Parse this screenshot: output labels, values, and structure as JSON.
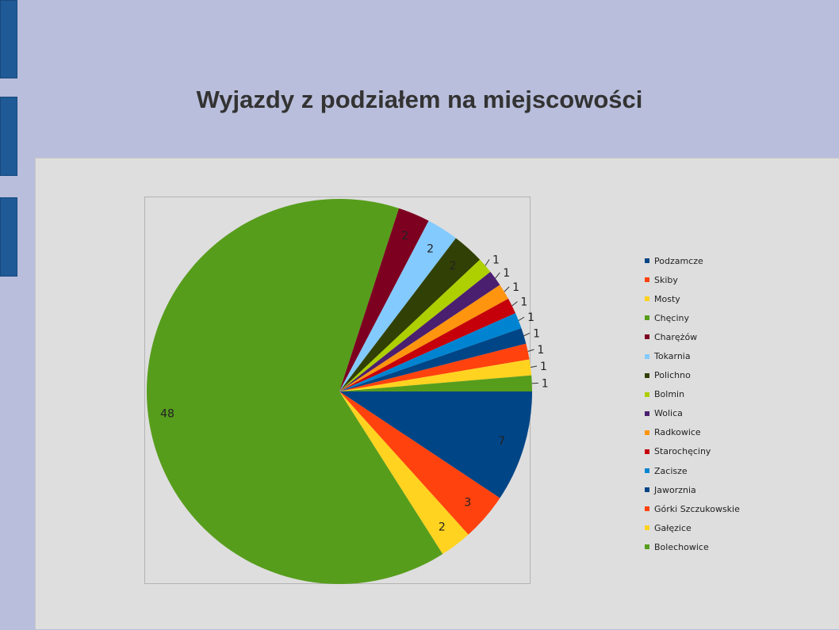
{
  "title": "Wyjazdy z podziałem na miejscowości",
  "chart_data": {
    "type": "pie",
    "categories": [
      "Podzamcze",
      "Skiby",
      "Mosty",
      "Chęciny",
      "Charężów",
      "Tokarnia",
      "Polichno",
      "Bolmin",
      "Wolica",
      "Radkowice",
      "Starochęciny",
      "Zacisze",
      "Jaworznia",
      "Górki Szczukowskie",
      "Gałęzice",
      "Bolechowice"
    ],
    "values": [
      7,
      3,
      2,
      48,
      2,
      2,
      2,
      1,
      1,
      1,
      1,
      1,
      1,
      1,
      1,
      1
    ],
    "colors": [
      "#004586",
      "#ff420e",
      "#ffd320",
      "#579d1c",
      "#7e0021",
      "#83caff",
      "#314004",
      "#aecf00",
      "#4b1f6f",
      "#ff950e",
      "#c5000b",
      "#0084d1",
      "#004586",
      "#ff420e",
      "#ffd320",
      "#579d1c"
    ],
    "data_labels": true,
    "legend_position": "right",
    "title": "",
    "xlabel": "",
    "ylabel": ""
  }
}
